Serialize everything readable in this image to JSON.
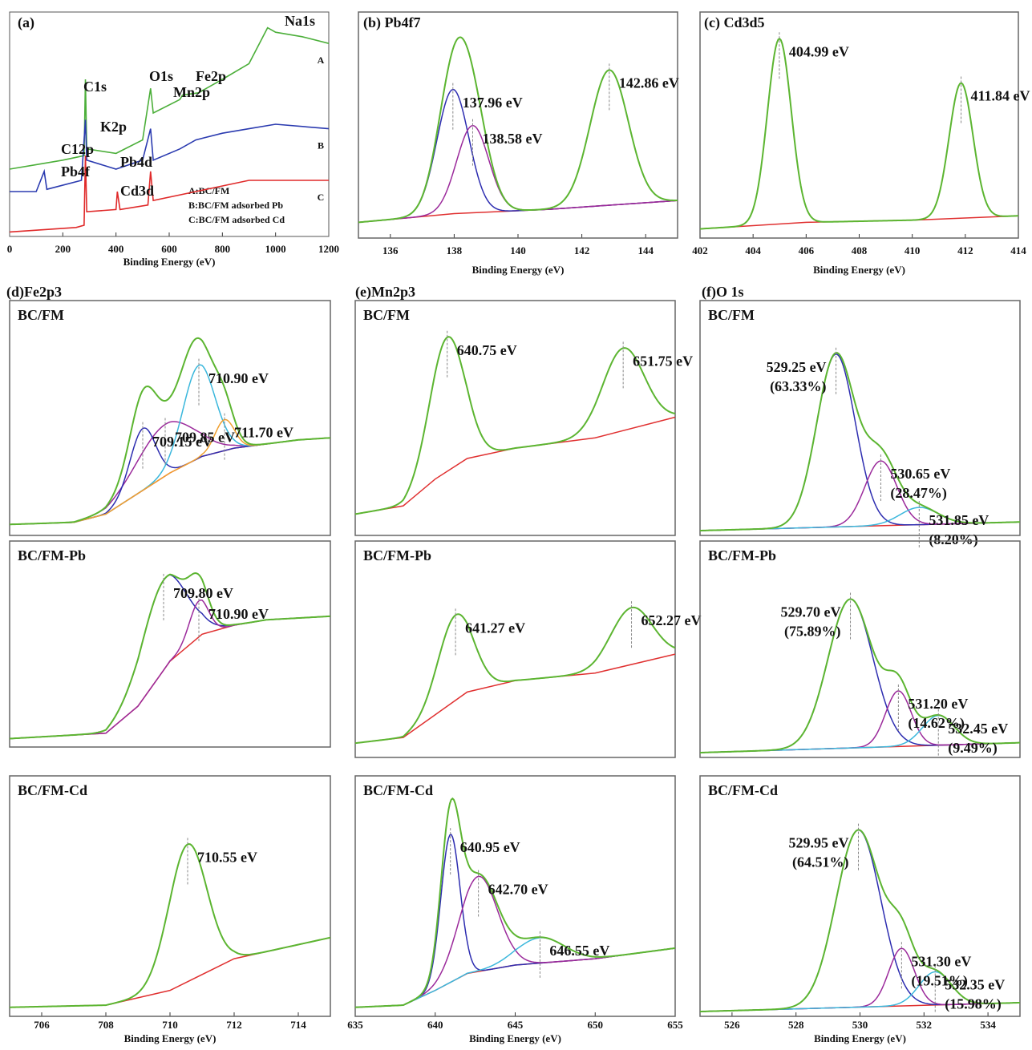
{
  "chart_data": [
    {
      "type": "survey",
      "title": "(a)",
      "x_label": "Binding Energy (eV)",
      "xlim": [
        0,
        1200
      ],
      "xticks": [
        0,
        200,
        400,
        600,
        800,
        1000,
        1200
      ],
      "ylim": [
        0,
        100
      ],
      "series": [
        {
          "name": "A",
          "description": "A:BC/FM",
          "color": "#4caf3a",
          "x": [
            0,
            100,
            200,
            280,
            285,
            290,
            400,
            500,
            530,
            540,
            640,
            650,
            710,
            800,
            900,
            970,
            1000,
            1100,
            1200
          ],
          "values": [
            30,
            32,
            34,
            36,
            70,
            39,
            37,
            43,
            66,
            55,
            61,
            63,
            64,
            70,
            77,
            93,
            91,
            89,
            86
          ]
        },
        {
          "name": "B",
          "description": "B:BC/FM adsorbed Pb",
          "color": "#2b3bb0",
          "x": [
            0,
            100,
            130,
            140,
            270,
            285,
            290,
            400,
            500,
            530,
            540,
            640,
            700,
            800,
            900,
            1000,
            1200
          ],
          "values": [
            20,
            20,
            29,
            21,
            25,
            52,
            34,
            30,
            34,
            48,
            34,
            39,
            43,
            46,
            48,
            50,
            48
          ]
        },
        {
          "name": "C",
          "description": "C:BC/FM adsorbed Cd",
          "color": "#e02a2a",
          "x": [
            0,
            250,
            280,
            285,
            290,
            400,
            405,
            415,
            520,
            530,
            540,
            700,
            900,
            1200
          ],
          "values": [
            2,
            4,
            5,
            36,
            11,
            12,
            20,
            12,
            14,
            29,
            16,
            20,
            25,
            25
          ]
        }
      ],
      "annotations": [
        {
          "text": "Na1s",
          "x": 975
        },
        {
          "text": "O1s",
          "x": 530
        },
        {
          "text": "Fe2p",
          "x": 710
        },
        {
          "text": "C1s",
          "x": 285
        },
        {
          "text": "Mn2p",
          "x": 640
        },
        {
          "text": "K2p",
          "x": 295
        },
        {
          "text": "C12p",
          "x": 200
        },
        {
          "text": "Pb4f",
          "x": 138
        },
        {
          "text": "Pb4d",
          "x": 413
        },
        {
          "text": "Cd3d",
          "x": 405
        }
      ]
    },
    {
      "type": "peakfit",
      "title": "(b) Pb4f7",
      "x_label": "Binding Energy (eV)",
      "xlim": [
        135,
        145
      ],
      "xticks": [
        136,
        138,
        140,
        142,
        144
      ],
      "envelope_color": "#5cb531",
      "baseline_color": "#e03030",
      "subplots": [
        {
          "ylim": [
            0,
            100
          ],
          "baseline": {
            "x": [
              135,
              138,
              141,
              145
            ],
            "values": [
              5,
              9,
              11,
              15
            ]
          },
          "peaks": [
            {
              "label": "137.96 eV",
              "center": 137.96,
              "height": 57,
              "width": 0.5,
              "color": "#2d2db0"
            },
            {
              "label": "138.58 eV",
              "center": 138.58,
              "height": 40,
              "width": 0.5,
              "color": "#9b2a9b"
            },
            {
              "label": "142.86 eV",
              "center": 142.86,
              "height": 62,
              "width": 0.6
            }
          ]
        }
      ]
    },
    {
      "type": "peakfit",
      "title": "(c) Cd3d5",
      "x_label": "Binding Energy (eV)",
      "xlim": [
        402,
        414
      ],
      "xticks": [
        402,
        404,
        406,
        408,
        410,
        412,
        414
      ],
      "envelope_color": "#5cb531",
      "baseline_color": "#e03030",
      "subplots": [
        {
          "ylim": [
            0,
            100
          ],
          "baseline": {
            "x": [
              402,
              406,
              410,
              414
            ],
            "values": [
              2,
              5,
              6,
              8
            ]
          },
          "peaks": [
            {
              "label": "404.99 eV",
              "center": 404.99,
              "height": 85,
              "width": 0.45
            },
            {
              "label": "411.84 eV",
              "center": 411.84,
              "height": 62,
              "width": 0.45
            }
          ]
        }
      ]
    },
    {
      "type": "peakfit",
      "title": "(d)Fe2p3",
      "x_label": "Binding Energy (eV)",
      "xlim": [
        705,
        715
      ],
      "xticks": [
        706,
        708,
        710,
        712,
        714
      ],
      "envelope_color": "#5cb531",
      "baseline_color": "#e03030",
      "subplots": [
        {
          "name": "BC/FM",
          "ylim": [
            0,
            110
          ],
          "baseline": {
            "x": [
              705,
              707,
              708,
              709,
              710,
              711,
              712,
              713,
              714,
              715
            ],
            "values": [
              3,
              4,
              8,
              18,
              28,
              36,
              40,
              42,
              44,
              45
            ]
          },
          "peaks": [
            {
              "label": "709.85 eV",
              "center": 709.85,
              "height": 25,
              "width": 0.9,
              "color": "#9b2a9b"
            },
            {
              "label": "709.15 eV",
              "center": 709.15,
              "height": 30,
              "width": 0.4,
              "color": "#2d2db0"
            },
            {
              "label": "710.90 eV",
              "center": 710.9,
              "height": 45,
              "width": 0.5,
              "color": "#3ab7dc"
            },
            {
              "label": "711.70 eV",
              "center": 711.7,
              "height": 15,
              "width": 0.3,
              "color": "#f0a030"
            }
          ]
        },
        {
          "name": "BC/FM-Pb",
          "ylim": [
            0,
            110
          ],
          "baseline": {
            "x": [
              705,
              708,
              709,
              710,
              711,
              712,
              713,
              715
            ],
            "values": [
              2,
              5,
              20,
              45,
              60,
              65,
              68,
              70
            ]
          },
          "peaks": [
            {
              "label": "709.80 eV",
              "center": 709.8,
              "height": 50,
              "width": 0.7,
              "color": "#2d2db0"
            },
            {
              "label": "710.90 eV",
              "center": 710.9,
              "height": 20,
              "width": 0.3,
              "color": "#9b2a9b"
            }
          ]
        },
        {
          "name": "BC/FM-Cd",
          "ylim": [
            0,
            110
          ],
          "baseline": {
            "x": [
              705,
              708,
              710,
              712,
              715
            ],
            "values": [
              2,
              3,
              10,
              25,
              35
            ]
          },
          "peaks": [
            {
              "label": "710.55 eV",
              "center": 710.55,
              "height": 65,
              "width": 0.6
            }
          ]
        }
      ]
    },
    {
      "type": "peakfit",
      "title": "(e)Mn2p3",
      "x_label": "Binding Energy (eV)",
      "xlim": [
        635,
        655
      ],
      "xticks": [
        635,
        640,
        645,
        650,
        655
      ],
      "envelope_color": "#5cb531",
      "baseline_color": "#e03030",
      "subplots": [
        {
          "name": "BC/FM",
          "ylim": [
            0,
            110
          ],
          "baseline": {
            "x": [
              635,
              638,
              640,
              642,
              645,
              650,
              655
            ],
            "values": [
              8,
              12,
              25,
              35,
              40,
              45,
              55
            ]
          },
          "peaks": [
            {
              "label": "640.75 eV",
              "center": 640.75,
              "height": 65,
              "width": 1.1
            },
            {
              "label": "651.75 eV",
              "center": 651.75,
              "height": 40,
              "width": 1.3
            }
          ]
        },
        {
          "name": "BC/FM-Pb",
          "ylim": [
            0,
            110
          ],
          "baseline": {
            "x": [
              635,
              638,
              640,
              642,
              645,
              650,
              655
            ],
            "values": [
              5,
              8,
              20,
              32,
              38,
              42,
              52
            ]
          },
          "peaks": [
            {
              "label": "641.27 eV",
              "center": 641.27,
              "height": 45,
              "width": 1.1
            },
            {
              "label": "652.27 eV",
              "center": 652.27,
              "height": 30,
              "width": 1.3
            }
          ]
        },
        {
          "name": "BC/FM-Cd",
          "ylim": [
            0,
            110
          ],
          "baseline": {
            "x": [
              635,
              638,
              640,
              642,
              645,
              650,
              655
            ],
            "values": [
              2,
              3,
              10,
              18,
              22,
              25,
              30
            ]
          },
          "peaks": [
            {
              "label": "640.95 eV",
              "center": 640.95,
              "height": 70,
              "width": 0.6,
              "color": "#2d2db0"
            },
            {
              "label": "642.70 eV",
              "center": 642.7,
              "height": 45,
              "width": 1.2,
              "color": "#9b2a9b"
            },
            {
              "label": "646.55 eV",
              "center": 646.55,
              "height": 12,
              "width": 1.5,
              "color": "#3ab7dc"
            }
          ]
        }
      ]
    },
    {
      "type": "peakfit",
      "title": "(f)O 1s",
      "x_label": "Binding Energy (eV)",
      "xlim": [
        525,
        535
      ],
      "xticks": [
        526,
        528,
        530,
        532,
        534
      ],
      "envelope_color": "#5cb531",
      "baseline_color": "#e03030",
      "subplots": [
        {
          "name": "BC/FM",
          "ylim": [
            0,
            105
          ],
          "baseline": {
            "x": [
              525,
              535
            ],
            "values": [
              0,
              4
            ]
          },
          "peaks": [
            {
              "label": "529.25 eV",
              "share_label": "(63.33%)",
              "share": 63.33,
              "center": 529.25,
              "height": 80,
              "width": 0.6,
              "color": "#2d2db0"
            },
            {
              "label": "530.65 eV",
              "share_label": "(28.47%)",
              "share": 28.47,
              "center": 530.65,
              "height": 30,
              "width": 0.5,
              "color": "#9b2a9b"
            },
            {
              "label": "531.85 eV",
              "share_label": "(8.20%)",
              "share": 8.2,
              "center": 531.85,
              "height": 8,
              "width": 0.6,
              "color": "#3ab7dc"
            }
          ]
        },
        {
          "name": "BC/FM-Pb",
          "ylim": [
            0,
            105
          ],
          "baseline": {
            "x": [
              525,
              535
            ],
            "values": [
              0,
              5
            ]
          },
          "peaks": [
            {
              "label": "529.70 eV",
              "share_label": "(75.89%)",
              "share": 75.89,
              "center": 529.7,
              "height": 75,
              "width": 0.7,
              "color": "#2d2db0"
            },
            {
              "label": "531.20 eV",
              "share_label": "(14.62%)",
              "share": 14.62,
              "center": 531.2,
              "height": 28,
              "width": 0.4,
              "color": "#9b2a9b"
            },
            {
              "label": "532.45 eV",
              "share_label": "(9.49%)",
              "share": 9.49,
              "center": 532.45,
              "height": 15,
              "width": 0.5,
              "color": "#3ab7dc"
            }
          ]
        },
        {
          "name": "BC/FM-Cd",
          "ylim": [
            0,
            105
          ],
          "baseline": {
            "x": [
              525,
              535
            ],
            "values": [
              0,
              4
            ]
          },
          "peaks": [
            {
              "label": "529.95 eV",
              "share_label": "(64.51%)",
              "share": 64.51,
              "center": 529.95,
              "height": 80,
              "width": 0.7,
              "color": "#2d2db0"
            },
            {
              "label": "531.30 eV",
              "share_label": "(19.51%)",
              "share": 19.51,
              "center": 531.3,
              "height": 26,
              "width": 0.4,
              "color": "#9b2a9b"
            },
            {
              "label": "532.35 eV",
              "share_label": "(15.98%)",
              "share": 15.98,
              "center": 532.35,
              "height": 15,
              "width": 0.5,
              "color": "#3ab7dc"
            }
          ]
        }
      ]
    }
  ]
}
